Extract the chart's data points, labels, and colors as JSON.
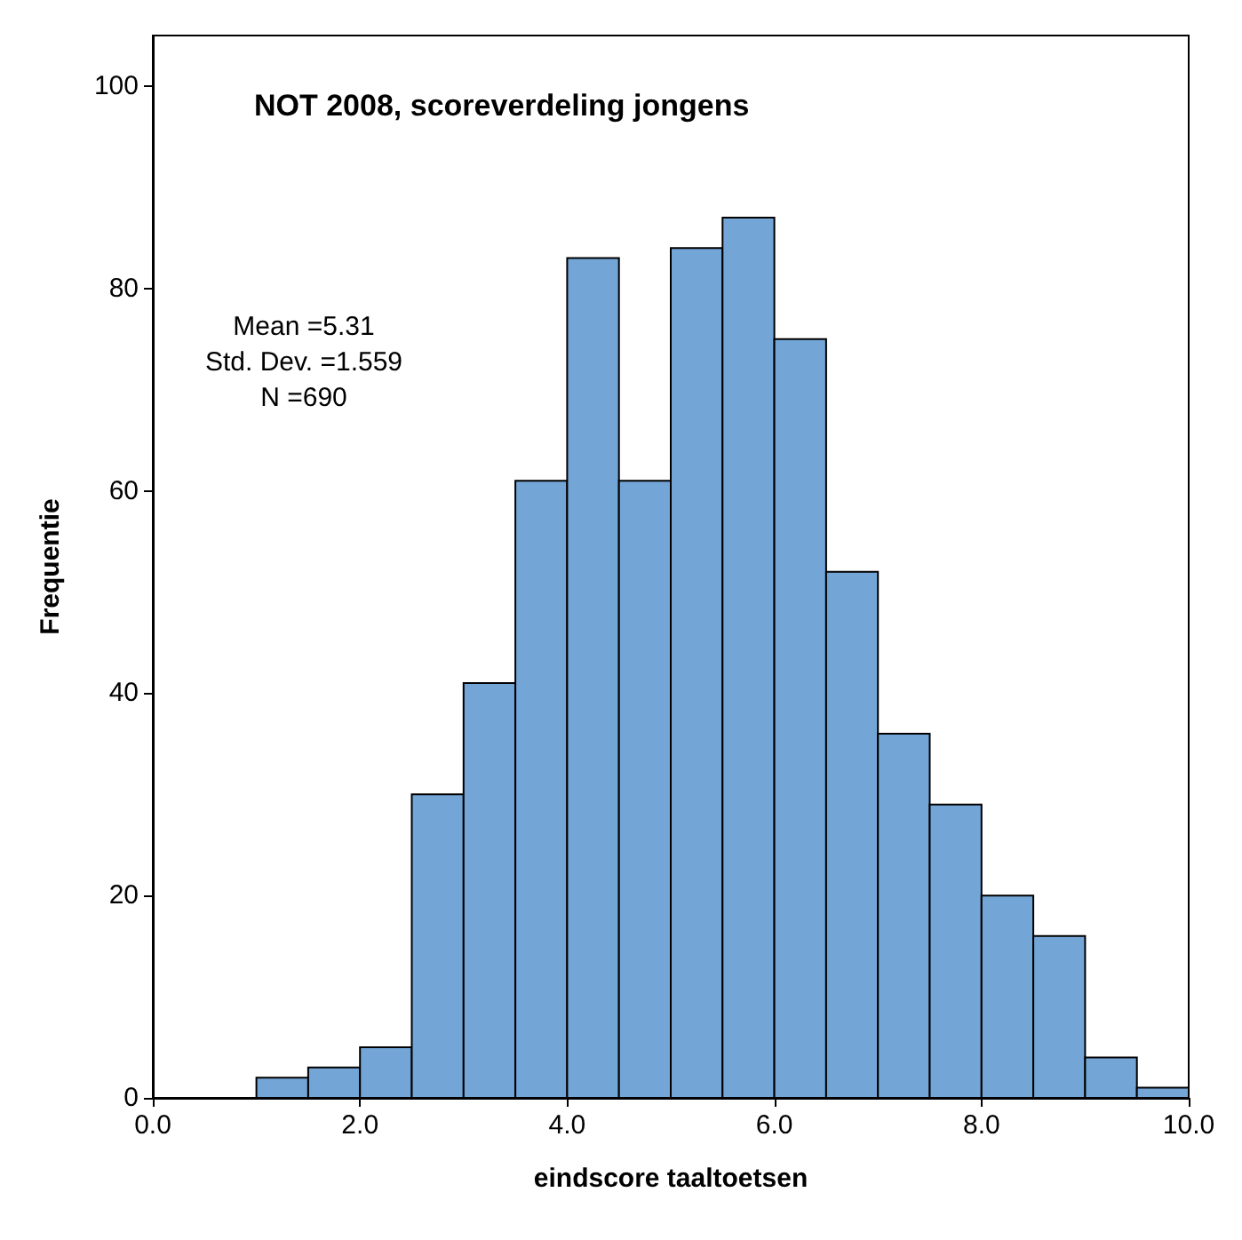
{
  "chart_data": {
    "type": "histogram",
    "title": "NOT 2008, scoreverdeling jongens",
    "xlabel": "eindscore taaltoetsen",
    "ylabel": "Frequentie",
    "bins": [
      0,
      0.5,
      1,
      1.5,
      2,
      2.5,
      3,
      3.5,
      4,
      4.5,
      5,
      5.5,
      6,
      6.5,
      7,
      7.5,
      8,
      8.5,
      9,
      9.5,
      10
    ],
    "values": [
      0,
      0,
      2,
      3,
      5,
      30,
      41,
      61,
      83,
      61,
      84,
      87,
      75,
      52,
      36,
      29,
      20,
      16,
      4,
      1
    ],
    "color": "#73a5d6",
    "xlim": [
      0,
      10
    ],
    "xticks": [
      {
        "value": 0,
        "label": "0.0"
      },
      {
        "value": 2,
        "label": "2.0"
      },
      {
        "value": 4,
        "label": "4.0"
      },
      {
        "value": 6,
        "label": "6.0"
      },
      {
        "value": 8,
        "label": "8.0"
      },
      {
        "value": 10,
        "label": "10.0"
      }
    ],
    "ylim": [
      0,
      105
    ],
    "yticks": [
      0,
      20,
      40,
      60,
      80,
      100
    ],
    "grid": false,
    "annotations": [
      "Mean =5.31",
      "Std. Dev. =1.559",
      "N =690"
    ]
  }
}
